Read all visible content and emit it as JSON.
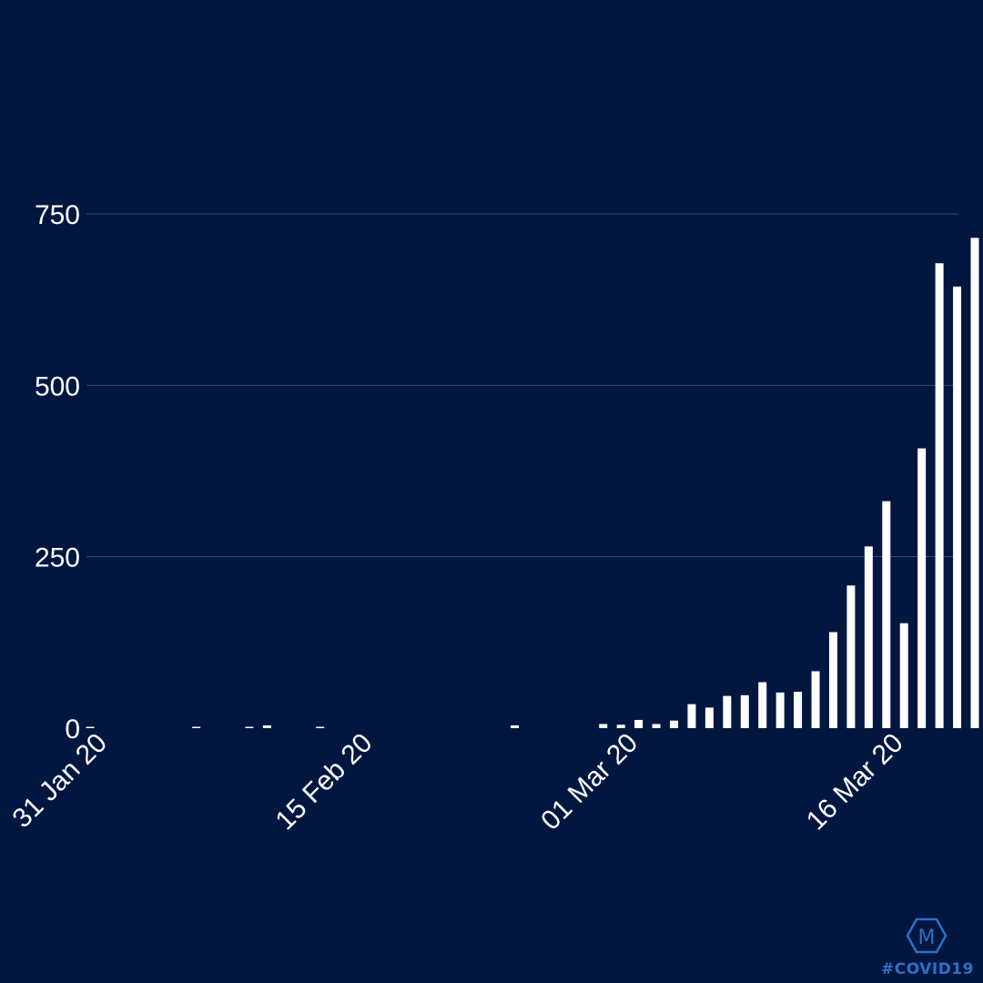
{
  "chart_data": {
    "type": "bar",
    "x_axis": {
      "type": "date",
      "start": "31 Jan 20",
      "tick_labels": [
        "31 Jan 20",
        "15 Feb 20",
        "01 Mar 20",
        "16 Mar 20"
      ]
    },
    "y_axis": {
      "ylim": [
        0,
        800
      ],
      "ticks": [
        0,
        250,
        500,
        750
      ],
      "tick_labels": [
        "0",
        "250",
        "500",
        "750"
      ]
    },
    "grid": true,
    "bar_color": "#ffffff",
    "background_color": "#011740",
    "categories": [
      "31 Jan 20",
      "01 Feb 20",
      "02 Feb 20",
      "03 Feb 20",
      "04 Feb 20",
      "05 Feb 20",
      "06 Feb 20",
      "07 Feb 20",
      "08 Feb 20",
      "09 Feb 20",
      "10 Feb 20",
      "11 Feb 20",
      "12 Feb 20",
      "13 Feb 20",
      "14 Feb 20",
      "15 Feb 20",
      "16 Feb 20",
      "17 Feb 20",
      "18 Feb 20",
      "19 Feb 20",
      "20 Feb 20",
      "21 Feb 20",
      "22 Feb 20",
      "23 Feb 20",
      "24 Feb 20",
      "25 Feb 20",
      "26 Feb 20",
      "27 Feb 20",
      "28 Feb 20",
      "29 Feb 20",
      "01 Mar 20",
      "02 Mar 20",
      "03 Mar 20",
      "04 Mar 20",
      "05 Mar 20",
      "06 Mar 20",
      "07 Mar 20",
      "08 Mar 20",
      "09 Mar 20",
      "10 Mar 20",
      "11 Mar 20",
      "12 Mar 20",
      "13 Mar 20",
      "14 Mar 20",
      "15 Mar 20",
      "16 Mar 20",
      "17 Mar 20",
      "18 Mar 20",
      "19 Mar 20",
      "20 Mar 20",
      "21 Mar 20"
    ],
    "values": [
      2,
      0,
      0,
      0,
      0,
      0,
      1,
      0,
      0,
      1,
      4,
      0,
      0,
      1,
      0,
      0,
      0,
      0,
      0,
      0,
      0,
      0,
      0,
      0,
      4,
      0,
      0,
      0,
      0,
      6,
      5,
      12,
      6,
      11,
      35,
      30,
      47,
      48,
      67,
      52,
      53,
      83,
      140,
      208,
      265,
      331,
      153,
      408,
      678,
      644,
      715
    ]
  },
  "logo": {
    "letter": "M",
    "text": "#COVID19",
    "color": "#2f6fc6"
  }
}
